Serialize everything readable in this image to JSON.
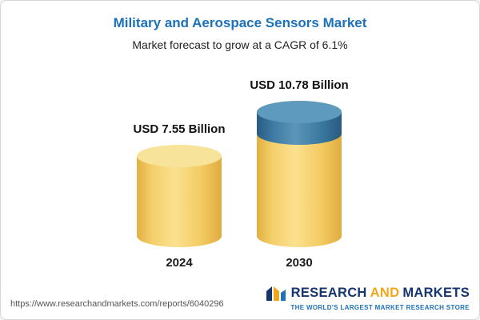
{
  "header": {
    "title": "Military and Aerospace Sensors Market",
    "subtitle": "Market forecast to grow at a CAGR of 6.1%"
  },
  "chart_data": {
    "type": "bar",
    "bar_style": "cylinder",
    "title": "Military and Aerospace Sensors Market",
    "subtitle": "Market forecast to grow at a CAGR of 6.1%",
    "categories": [
      "2024",
      "2030"
    ],
    "values": [
      7.55,
      10.78
    ],
    "value_labels": [
      "USD 7.55 Billion",
      "USD 10.78 Billion"
    ],
    "unit": "USD Billion",
    "cagr": "6.1%",
    "legend": "none",
    "colors": {
      "base_segment": "#F3CC63",
      "growth_segment": "#3B79A2",
      "title_text": "#1D71B8"
    }
  },
  "footer": {
    "url": "https://www.researchandmarkets.com/reports/6040296",
    "logo": {
      "word1": "RESEARCH",
      "word2": "AND",
      "word3": "MARKETS",
      "tagline": "THE WORLD'S LARGEST MARKET RESEARCH STORE"
    }
  }
}
